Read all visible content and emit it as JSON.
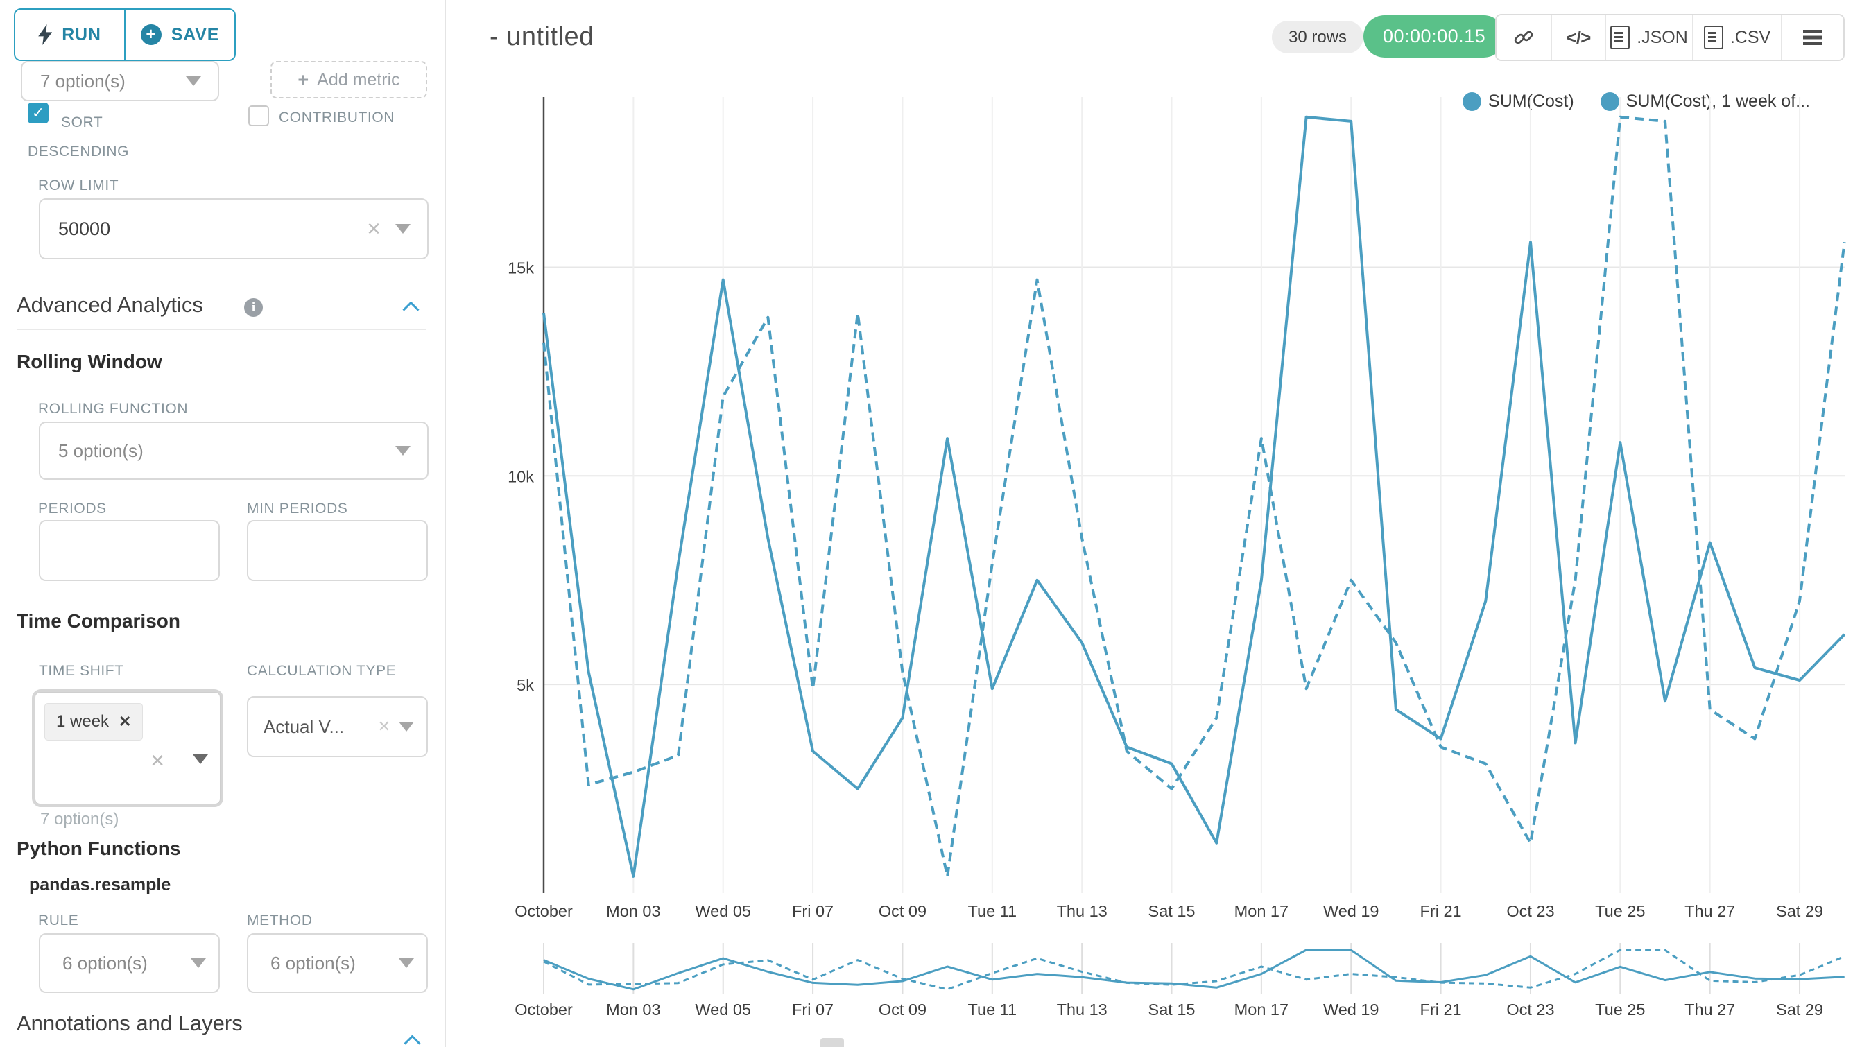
{
  "sidebar": {
    "run_label": "RUN",
    "save_label": "SAVE",
    "metric_select_value": "7 option(s)",
    "add_metric_label": "Add metric",
    "sort_descending_label": "SORT DESCENDING",
    "contribution_label": "CONTRIBUTION",
    "row_limit_label": "ROW LIMIT",
    "row_limit_value": "50000",
    "advanced_analytics_title": "Advanced Analytics",
    "rolling_window_title": "Rolling Window",
    "rolling_function_label": "ROLLING FUNCTION",
    "rolling_function_value": "5 option(s)",
    "periods_label": "PERIODS",
    "min_periods_label": "MIN PERIODS",
    "time_comparison_title": "Time Comparison",
    "time_shift_label": "TIME SHIFT",
    "time_shift_tag": "1 week",
    "time_shift_helper": "7 option(s)",
    "calculation_type_label": "CALCULATION TYPE",
    "calculation_type_value": "Actual V...",
    "python_functions_title": "Python Functions",
    "pandas_resample_label": "pandas.resample",
    "rule_label": "RULE",
    "rule_value": "6 option(s)",
    "method_label": "METHOD",
    "method_value": "6 option(s)",
    "annotations_title": "Annotations and Layers"
  },
  "header": {
    "title": "- untitled",
    "rows_badge": "30 rows",
    "timer_badge": "00:00:00.15",
    "json_label": ".JSON",
    "csv_label": ".CSV"
  },
  "legend": [
    {
      "label": "SUM(Cost)"
    },
    {
      "label": "SUM(Cost), 1 week of..."
    }
  ],
  "colors": {
    "accent": "#2c9fc0",
    "line": "#4b9ec1",
    "success_green": "#5ac189",
    "axis": "#4a4a4a",
    "grid": "#e9e9e9"
  },
  "chart_data": {
    "type": "line",
    "title": "- untitled",
    "xlabel": "",
    "ylabel": "",
    "ylim": [
      0,
      19100
    ],
    "grid": true,
    "legend_position": "top-right",
    "y_ticks": [
      {
        "value": 5000,
        "label": "5k"
      },
      {
        "value": 10000,
        "label": "10k"
      },
      {
        "value": 15000,
        "label": "15k"
      }
    ],
    "x_ticks": [
      {
        "day": 1,
        "label": "October"
      },
      {
        "day": 3,
        "label": "Mon 03"
      },
      {
        "day": 5,
        "label": "Wed 05"
      },
      {
        "day": 7,
        "label": "Fri 07"
      },
      {
        "day": 9,
        "label": "Oct 09"
      },
      {
        "day": 11,
        "label": "Tue 11"
      },
      {
        "day": 13,
        "label": "Thu 13"
      },
      {
        "day": 15,
        "label": "Sat 15"
      },
      {
        "day": 17,
        "label": "Mon 17"
      },
      {
        "day": 19,
        "label": "Wed 19"
      },
      {
        "day": 21,
        "label": "Fri 21"
      },
      {
        "day": 23,
        "label": "Oct 23"
      },
      {
        "day": 25,
        "label": "Tue 25"
      },
      {
        "day": 27,
        "label": "Thu 27"
      },
      {
        "day": 29,
        "label": "Sat 29"
      }
    ],
    "x_range_days": [
      1,
      30
    ],
    "series": [
      {
        "name": "SUM(Cost)",
        "style": "solid",
        "values": [
          13900,
          5300,
          400,
          7900,
          14700,
          8500,
          3400,
          2500,
          4200,
          10900,
          4900,
          7500,
          6000,
          3500,
          3100,
          1200,
          7500,
          18600,
          18500,
          4400,
          3700,
          7000,
          15600,
          3600,
          10800,
          4600,
          8400,
          5400,
          5100,
          6200
        ]
      },
      {
        "name": "SUM(Cost), 1 week offset",
        "style": "dashed",
        "values": [
          13200,
          2600,
          2900,
          3300,
          11900,
          13800,
          4900,
          13900,
          5300,
          400,
          7900,
          14700,
          8500,
          3400,
          2500,
          4200,
          10900,
          4900,
          7500,
          6000,
          3500,
          3100,
          1200,
          7500,
          18600,
          18500,
          4400,
          3700,
          7000,
          15600
        ]
      }
    ],
    "mini_map": true
  }
}
